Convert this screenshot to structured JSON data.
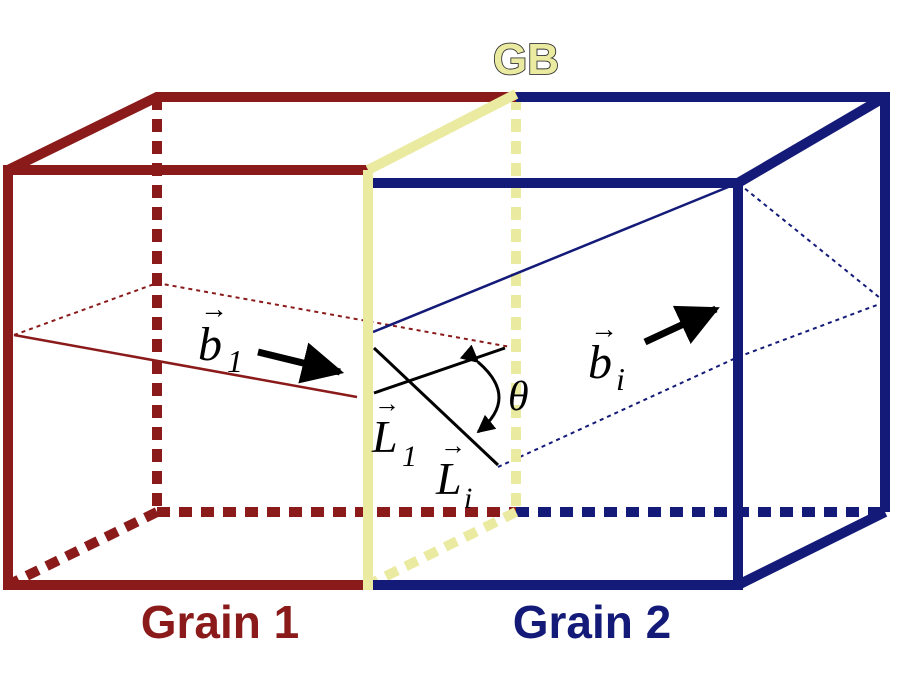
{
  "colors": {
    "grain1": "#8b1a1a",
    "grain2": "#141a78",
    "boundary": "#eaeaa0",
    "boundary_outline": "#333333",
    "vector": "#000000"
  },
  "labels": {
    "gb": "GB",
    "grain1": "Grain 1",
    "grain2": "Grain 2",
    "b1": "b",
    "b1_sub": "1",
    "bi": "b",
    "bi_sub": "i",
    "L1": "L",
    "L1_sub": "1",
    "Li": "L",
    "Li_sub": "i",
    "theta": "θ"
  },
  "icons": {
    "b1_arrow": "right-arrow-icon",
    "bi_arrow": "up-right-arrow-icon",
    "theta_arc": "curved-double-arrow-icon"
  }
}
